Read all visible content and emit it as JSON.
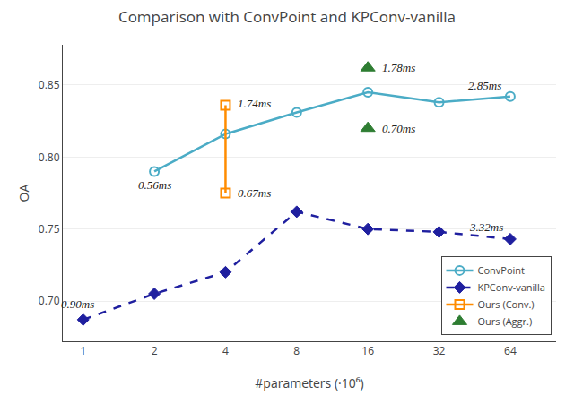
{
  "chart_data": {
    "type": "line",
    "title": "Comparison with ConvPoint and KPConv-vanilla",
    "xlabel": "#parameters (·10⁶)",
    "ylabel": "OA",
    "log": "x",
    "grid": true,
    "legend": "lower right",
    "xlim": [
      0.82,
      100
    ],
    "xticks": [
      1,
      2,
      4,
      8,
      16,
      32,
      64
    ],
    "ylim": [
      0.672,
      0.878
    ],
    "yticks": [
      {
        "value": 0.7,
        "label": "0.70"
      },
      0.75,
      {
        "value": 0.8,
        "label": "0.80"
      },
      0.85
    ],
    "series": [
      {
        "name": "ConvPoint",
        "color": "#4BACC6",
        "marker": "circle-open",
        "line_style": "solid",
        "x": [
          2,
          4,
          8,
          16,
          32,
          64
        ],
        "values": [
          0.79,
          0.816,
          0.831,
          0.845,
          0.838,
          0.842
        ]
      },
      {
        "name": "KPConv-vanilla",
        "color": "#1F1F9F",
        "marker": "diamond",
        "line_style": "dashed",
        "x": [
          1,
          2,
          4,
          8,
          16,
          32,
          64
        ],
        "values": [
          0.687,
          0.705,
          0.72,
          0.762,
          0.75,
          0.748,
          0.743
        ]
      },
      {
        "name": "Ours (Conv.)",
        "color": "#FF8C00",
        "marker": "square-open",
        "line_style": "solid",
        "x": [
          4,
          4
        ],
        "values": [
          0.836,
          0.775
        ]
      },
      {
        "name": "Ours (Aggr.)",
        "color": "#2E7D32",
        "marker": "triangle-up",
        "line_style": "none",
        "x": [
          16,
          16
        ],
        "values": [
          0.862,
          0.82
        ]
      }
    ],
    "annotations": [
      {
        "text": "0.56ms",
        "x": 2,
        "y": 0.79
      },
      {
        "text": "2.85ms",
        "x": 64,
        "y": 0.842
      },
      {
        "text": "0.90ms",
        "x": 1,
        "y": 0.687
      },
      {
        "text": "3.32ms",
        "x": 64,
        "y": 0.743
      },
      {
        "text": "1.74ms",
        "x": 4,
        "y": 0.836
      },
      {
        "text": "0.67ms",
        "x": 4,
        "y": 0.775
      },
      {
        "text": "1.78ms",
        "x": 16,
        "y": 0.862
      },
      {
        "text": "0.70ms",
        "x": 16,
        "y": 0.82
      }
    ]
  }
}
